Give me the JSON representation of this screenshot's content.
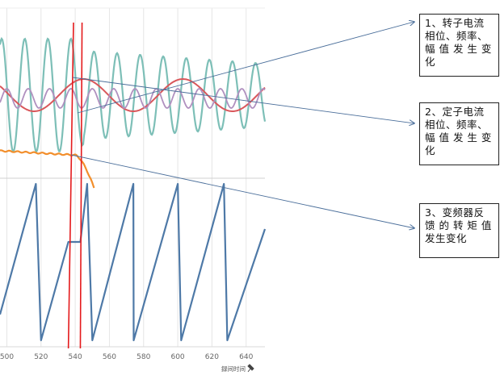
{
  "chart_data": {
    "type": "line",
    "x_axis": {
      "title": "録间时间",
      "ticks": [
        500,
        520,
        540,
        560,
        580,
        600,
        620,
        640
      ],
      "range": [
        496,
        651
      ]
    },
    "top_panel": {
      "series": [
        {
          "key": "rotor_current",
          "color": "#7dbfb7",
          "amplitude_scale": 1.0
        },
        {
          "key": "stator_current_red",
          "color": "#d9575b"
        },
        {
          "key": "stator_current_purple",
          "color": "#b090bf"
        },
        {
          "key": "torque_feedback",
          "color": "#f28e2b"
        }
      ]
    },
    "bottom_panel": {
      "series": [
        {
          "key": "sawtooth",
          "color": "#4e79a7",
          "peaks_x": [
            517,
            539,
            547,
            574,
            600,
            627
          ],
          "troughs_x": [
            520,
            536,
            544,
            550,
            574,
            602,
            629
          ]
        }
      ]
    },
    "markers": [
      {
        "key": "event_line_1",
        "x": [
          536,
          539
        ],
        "color": "#e41a1c"
      },
      {
        "key": "event_line_2",
        "x": [
          543,
          544
        ],
        "color": "#e41a1c"
      }
    ],
    "annotations": [
      {
        "text": "1、转子电流相位、频率、幅值发生变化"
      },
      {
        "text": "2、定子电流相位、频率、幅值发生变化"
      },
      {
        "text": "3、变频器反馈的转矩值发生变化"
      }
    ]
  },
  "callouts": {
    "c1": "1、转子电流\n相位、频率、\n幅 值 发 生 变\n化",
    "c2": "2、定子电流\n相位、频率、\n幅 值 发 生 变\n化",
    "c3": "3、变频器反\n馈 的 转 矩 值\n发生变化"
  },
  "colors": {
    "arrow": "#4a6e9a",
    "grid": "#e6e6e6",
    "red_marker": "#e41a1c"
  }
}
